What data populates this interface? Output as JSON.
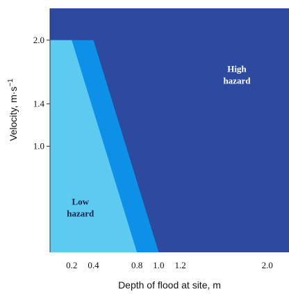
{
  "chart_data": {
    "type": "area",
    "xlabel": "Depth of flood at site, m",
    "ylabel": "Velocity, m·s",
    "ylabel_superscript": "−1",
    "xlim": [
      0,
      2.2
    ],
    "ylim": [
      0,
      2.3
    ],
    "x_ticks": [
      0.2,
      0.4,
      0.8,
      1.0,
      1.2,
      2.0
    ],
    "x_tick_labels": [
      "0.2",
      "0.4",
      "0.8",
      "1.0",
      "1.2",
      "2.0"
    ],
    "y_ticks": [
      1.0,
      1.4,
      2.0
    ],
    "y_tick_labels": [
      "1.0",
      "1.4",
      "2.0"
    ],
    "zones": [
      {
        "name": "High hazard",
        "label_lines": [
          "High",
          "hazard"
        ],
        "color": "#2e4a9e",
        "label_color": "#ffffff",
        "boundary": "region outside the low and medium zones"
      },
      {
        "name": "",
        "color": "#0d90e8",
        "polygon": [
          [
            0,
            0
          ],
          [
            1.0,
            0
          ],
          [
            0.4,
            2.0
          ],
          [
            0,
            2.0
          ]
        ]
      },
      {
        "name": "Low hazard",
        "label_lines": [
          "Low",
          "hazard"
        ],
        "color": "#5dcbef",
        "label_color": "#10204a",
        "polygon": [
          [
            0,
            0
          ],
          [
            0.8,
            0
          ],
          [
            0.2,
            2.0
          ],
          [
            0,
            2.0
          ]
        ]
      }
    ],
    "high_label_pos": [
      1.72,
      1.7
    ],
    "low_label_pos": [
      0.28,
      0.45
    ]
  }
}
